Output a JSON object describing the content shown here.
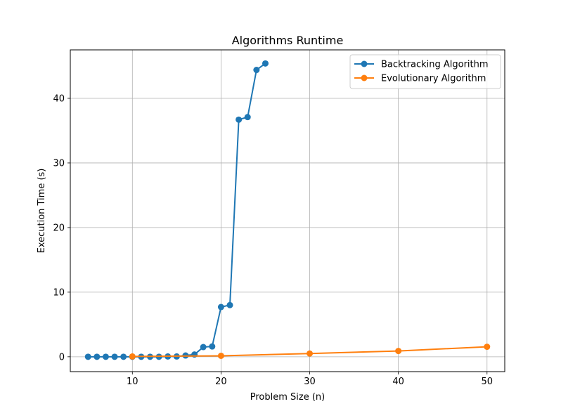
{
  "chart_data": {
    "type": "line",
    "title": "Algorithms Runtime",
    "xlabel": "Problem Size (n)",
    "ylabel": "Execution Time (s)",
    "xlim": [
      3,
      52
    ],
    "ylim": [
      -2.3,
      47.5
    ],
    "xticks": [
      10,
      20,
      30,
      40,
      50
    ],
    "yticks": [
      0,
      10,
      20,
      30,
      40
    ],
    "grid": true,
    "legend_position": "top-right",
    "series": [
      {
        "name": "Backtracking Algorithm",
        "color": "#1f77b4",
        "x": [
          5,
          6,
          7,
          8,
          9,
          10,
          11,
          12,
          13,
          14,
          15,
          16,
          17,
          18,
          19,
          20,
          21,
          22,
          23,
          24,
          25
        ],
        "y": [
          0.0,
          0.0,
          0.0,
          0.0,
          0.0,
          0.0,
          0.0,
          0.0,
          0.0,
          0.05,
          0.05,
          0.2,
          0.35,
          1.5,
          1.6,
          7.7,
          8.0,
          36.7,
          37.1,
          44.4,
          45.4
        ]
      },
      {
        "name": "Evolutionary Algorithm",
        "color": "#ff7f0e",
        "x": [
          10,
          20,
          30,
          40,
          50
        ],
        "y": [
          0.05,
          0.15,
          0.5,
          0.9,
          1.55
        ]
      }
    ]
  }
}
